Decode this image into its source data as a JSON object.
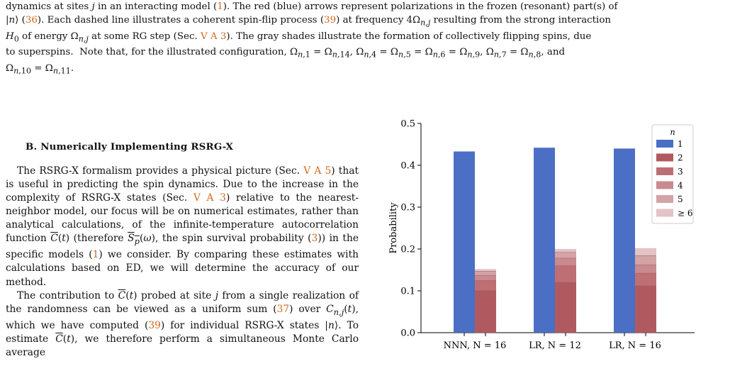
{
  "caption": {
    "line1": "dynamics at sites j in an interacting model (1). The red (blue) arrows represent polarizations in the frozen (resonant) part(s) of",
    "line2": "|n⟩ (36). Each dashed line illustrates a coherent spin-flip process (39) at frequency 4Ω_{n,j} resulting from the strong interaction",
    "line3": "H_0 of energy Ω_{n,j} at some RG step (Sec. V A 3). The gray shades illustrate the formation of collectively flipping spins, due",
    "line4": "to superspins. Note that, for the illustrated configuration, Ω_{n,1} = Ω_{n,14}, Ω_{n,4} = Ω_{n,5} = Ω_{n,6} = Ω_{n,9}, Ω_{n,7} = Ω_{n,8}, and",
    "line5": "Ω_{n,10} = Ω_{n,11}."
  },
  "section": {
    "title": "B.   Numerically Implementing RSRG-X"
  },
  "body": {
    "p1": "The RSRG-X formalism provides a physical picture (Sec. V A 5) that is useful in predicting the spin dynamics. Due to the increase in the complexity of RSRG-X states (Sec. V A 3) relative to the nearest-neighbor model, our focus will be on numerical estimates, rather than analytical calculations, of the infinite-temperature autocorrelation function C̄(t) (therefore S̄_p(ω), the spin survival probability (3)) in the specific models (1) we consider. By comparing these estimates with calculations based on ED, we will determine the accuracy of our method.",
    "p2": "The contribution to C̄(t) probed at site j from a single realization of the randomness can be viewed as a uniform sum (37) over C_{n,j}(t), which we have computed (39) for individual RSRG-X states |n⟩. To estimate C̄(t), we therefore perform a simultaneous Monte Carlo average"
  },
  "chart_data": {
    "type": "bar",
    "title": "",
    "xlabel": "",
    "ylabel": "Probability",
    "ylim": [
      0,
      0.5
    ],
    "yticks": [
      "0.0",
      "0.1",
      "0.2",
      "0.3",
      "0.4",
      "0.5"
    ],
    "categories": [
      "NNN, N = 16",
      "LR, N = 12",
      "LR, N = 16"
    ],
    "legend_title": "n",
    "legend_position": "top-right",
    "series": [
      {
        "name": "1",
        "group": "left",
        "color": "#4a6fc4",
        "values": [
          0.433,
          0.442,
          0.44
        ]
      },
      {
        "name": "2",
        "group": "right",
        "color": "#b05a60",
        "values": [
          0.1,
          0.12,
          0.112
        ]
      },
      {
        "name": "3",
        "group": "right",
        "color": "#bd6f74",
        "values": [
          0.025,
          0.04,
          0.03
        ]
      },
      {
        "name": "4",
        "group": "right",
        "color": "#c88a8e",
        "values": [
          0.012,
          0.018,
          0.02
        ]
      },
      {
        "name": "5",
        "group": "right",
        "color": "#d3a3a6",
        "values": [
          0.01,
          0.014,
          0.022
        ]
      },
      {
        "name": "≥ 6",
        "group": "right",
        "color": "#e3c3c5",
        "values": [
          0.005,
          0.008,
          0.018
        ]
      }
    ]
  }
}
